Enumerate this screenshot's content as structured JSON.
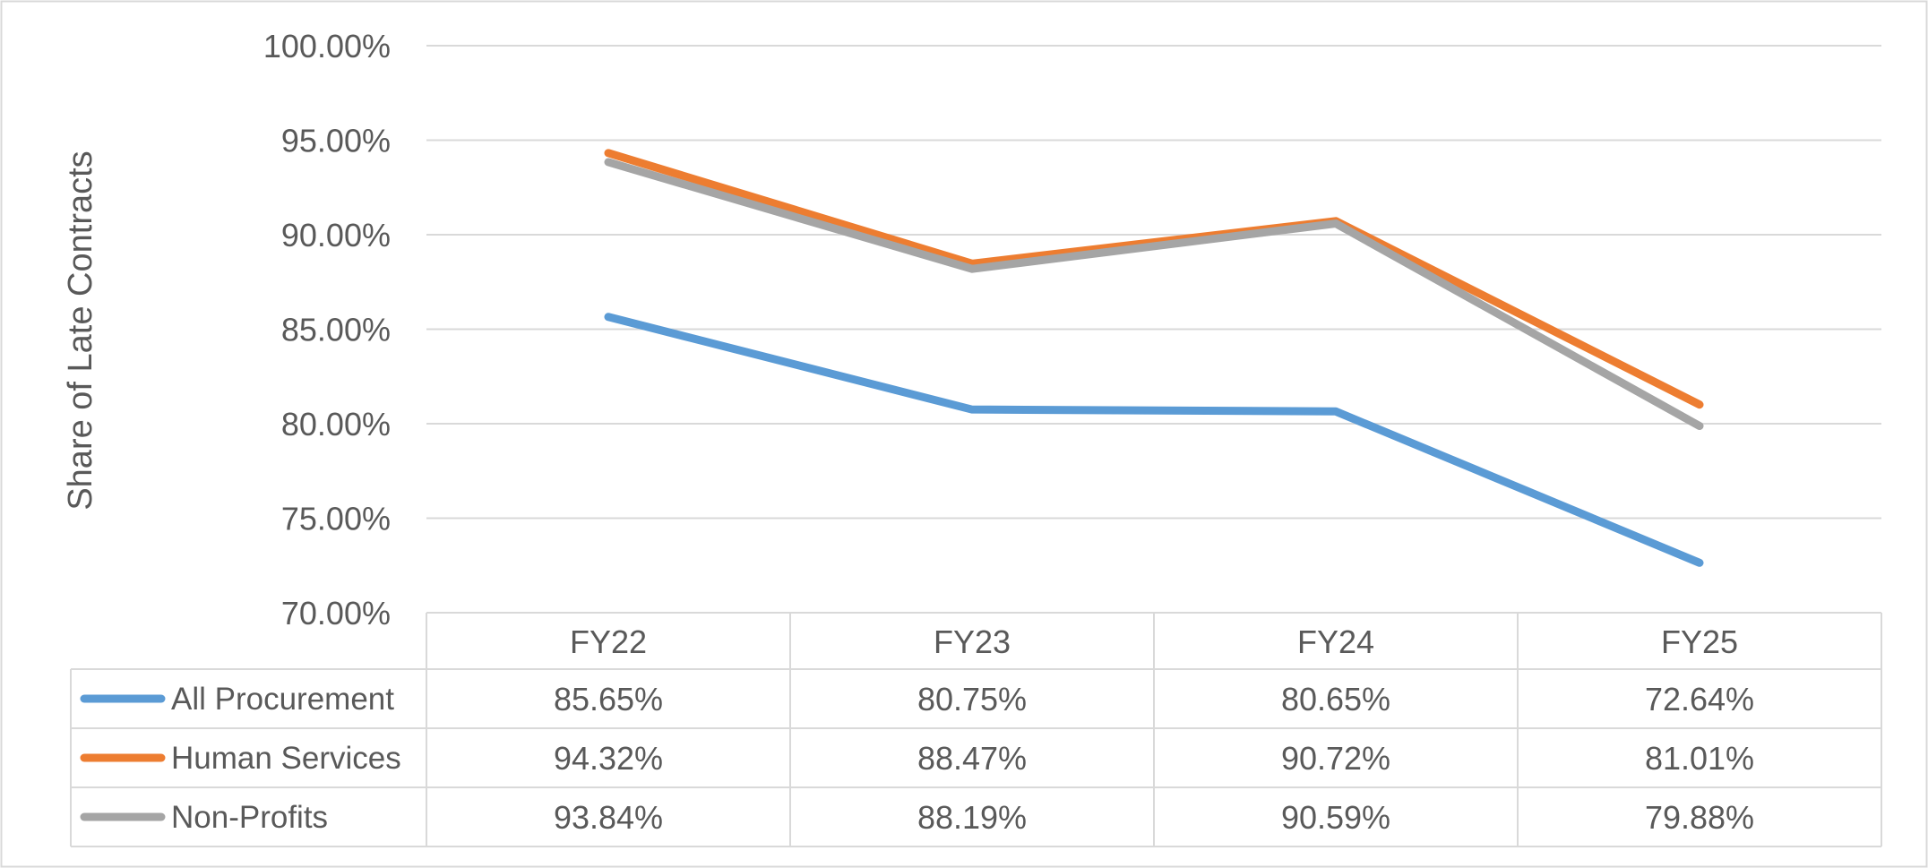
{
  "chart_data": {
    "type": "line",
    "title": "",
    "xlabel": "",
    "ylabel": "Share of Late Contracts",
    "categories": [
      "FY22",
      "FY23",
      "FY24",
      "FY25"
    ],
    "ylim": [
      70,
      100
    ],
    "y_ticks": [
      {
        "value": 100,
        "label": "100.00%"
      },
      {
        "value": 95,
        "label": "95.00%"
      },
      {
        "value": 90,
        "label": "90.00%"
      },
      {
        "value": 85,
        "label": "85.00%"
      },
      {
        "value": 80,
        "label": "80.00%"
      },
      {
        "value": 75,
        "label": "75.00%"
      },
      {
        "value": 70,
        "label": "70.00%"
      }
    ],
    "grid": true,
    "legend": "data-table-left",
    "series": [
      {
        "name": "All Procurement",
        "color": "#5B9BD5",
        "values": [
          85.65,
          80.75,
          80.65,
          72.64
        ],
        "labels": [
          "85.65%",
          "80.75%",
          "80.65%",
          "72.64%"
        ]
      },
      {
        "name": "Human Services",
        "color": "#ED7D31",
        "values": [
          94.32,
          88.47,
          90.72,
          81.01
        ],
        "labels": [
          "94.32%",
          "88.47%",
          "90.72%",
          "81.01%"
        ]
      },
      {
        "name": "Non-Profits",
        "color": "#A5A5A5",
        "values": [
          93.84,
          88.19,
          90.59,
          79.88
        ],
        "labels": [
          "93.84%",
          "88.19%",
          "90.59%",
          "79.88%"
        ]
      }
    ]
  }
}
